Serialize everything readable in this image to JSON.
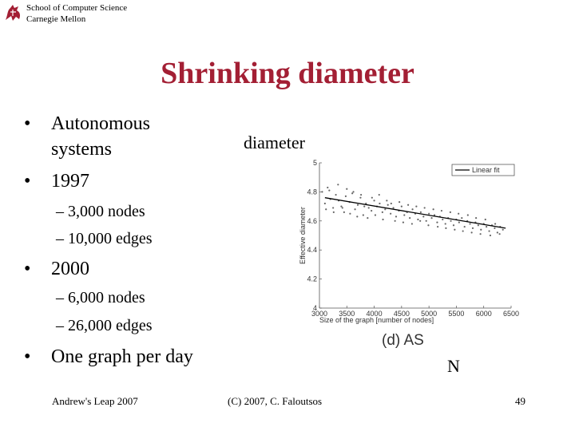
{
  "header": {
    "school": "School of Computer Science",
    "university": "Carnegie Mellon"
  },
  "slide": {
    "title": "Shrinking diameter",
    "bullets": [
      {
        "text_line1": "Autonomous",
        "text_line2": "systems"
      },
      {
        "text": "1997",
        "sub": [
          "3,000 nodes",
          "10,000 edges"
        ]
      },
      {
        "text": "2000",
        "sub": [
          "6,000 nodes",
          "26,000 edges"
        ]
      },
      {
        "text": "One graph per day"
      }
    ],
    "annotations": {
      "diameter": "diameter",
      "n": "N"
    }
  },
  "footer": {
    "left": "Andrew's Leap 2007",
    "center": "(C) 2007, C. Faloutsos",
    "page": "49"
  },
  "chart_data": {
    "type": "scatter",
    "caption": "(d) AS",
    "xlabel": "Size of the graph [number of nodes]",
    "ylabel": "Effective diameter",
    "xlim": [
      3000,
      6500
    ],
    "ylim": [
      4,
      5
    ],
    "xticks": [
      "3000",
      "3500",
      "4000",
      "4500",
      "5000",
      "5500",
      "6000",
      "6500"
    ],
    "yticks": [
      "4",
      "4.2",
      "4.4",
      "4.6",
      "4.8",
      "5"
    ],
    "legend": {
      "label": "Linear fit",
      "position": "top-right"
    },
    "linear_fit": {
      "x": [
        3100,
        6400
      ],
      "y": [
        4.76,
        4.55
      ]
    },
    "series": [
      {
        "x": [
          3050,
          3100,
          3150,
          3200,
          3250,
          3300,
          3350,
          3400,
          3450,
          3500,
          3550,
          3600,
          3650,
          3700,
          3750,
          3800,
          3850,
          3900,
          3950,
          4000,
          4050,
          4100,
          4150,
          4200,
          4250,
          4300,
          4350,
          4400,
          4450,
          4500,
          4550,
          4600,
          4650,
          4700,
          4750,
          4800,
          4850,
          4900,
          4950,
          5000,
          5050,
          5100,
          5150,
          5200,
          5250,
          5300,
          5350,
          5400,
          5450,
          5500,
          5550,
          5600,
          5650,
          5700,
          5750,
          5800,
          5850,
          5900,
          5950,
          6000,
          6050,
          6100,
          6150,
          6200,
          6250,
          6300,
          6350,
          3120,
          3180,
          3260,
          3340,
          3420,
          3480,
          3560,
          3620,
          3690,
          3760,
          3820,
          3880,
          3960,
          4020,
          4090,
          4160,
          4230,
          4310,
          4380,
          4460,
          4530,
          4620,
          4690,
          4770,
          4840,
          4920,
          4990,
          5080,
          5160,
          5230,
          5310,
          5390,
          5470,
          5540,
          5620,
          5710,
          5780,
          5860,
          5940,
          6030,
          6120,
          6210,
          6290
        ],
        "y": [
          4.8,
          4.72,
          4.83,
          4.75,
          4.69,
          4.78,
          4.74,
          4.7,
          4.66,
          4.82,
          4.73,
          4.79,
          4.68,
          4.71,
          4.76,
          4.64,
          4.72,
          4.69,
          4.67,
          4.74,
          4.7,
          4.72,
          4.66,
          4.68,
          4.71,
          4.65,
          4.69,
          4.63,
          4.67,
          4.7,
          4.64,
          4.66,
          4.62,
          4.68,
          4.65,
          4.61,
          4.66,
          4.63,
          4.6,
          4.65,
          4.62,
          4.64,
          4.59,
          4.63,
          4.61,
          4.58,
          4.62,
          4.6,
          4.57,
          4.61,
          4.59,
          4.62,
          4.56,
          4.6,
          4.58,
          4.55,
          4.59,
          4.57,
          4.54,
          4.58,
          4.56,
          4.53,
          4.57,
          4.55,
          4.52,
          4.56,
          4.54,
          4.68,
          4.81,
          4.66,
          4.85,
          4.69,
          4.77,
          4.65,
          4.8,
          4.63,
          4.78,
          4.7,
          4.62,
          4.76,
          4.64,
          4.78,
          4.61,
          4.74,
          4.72,
          4.6,
          4.73,
          4.59,
          4.71,
          4.58,
          4.7,
          4.6,
          4.69,
          4.57,
          4.68,
          4.56,
          4.67,
          4.55,
          4.66,
          4.54,
          4.65,
          4.53,
          4.64,
          4.52,
          4.62,
          4.51,
          4.61,
          4.5,
          4.58,
          4.51
        ]
      }
    ]
  }
}
